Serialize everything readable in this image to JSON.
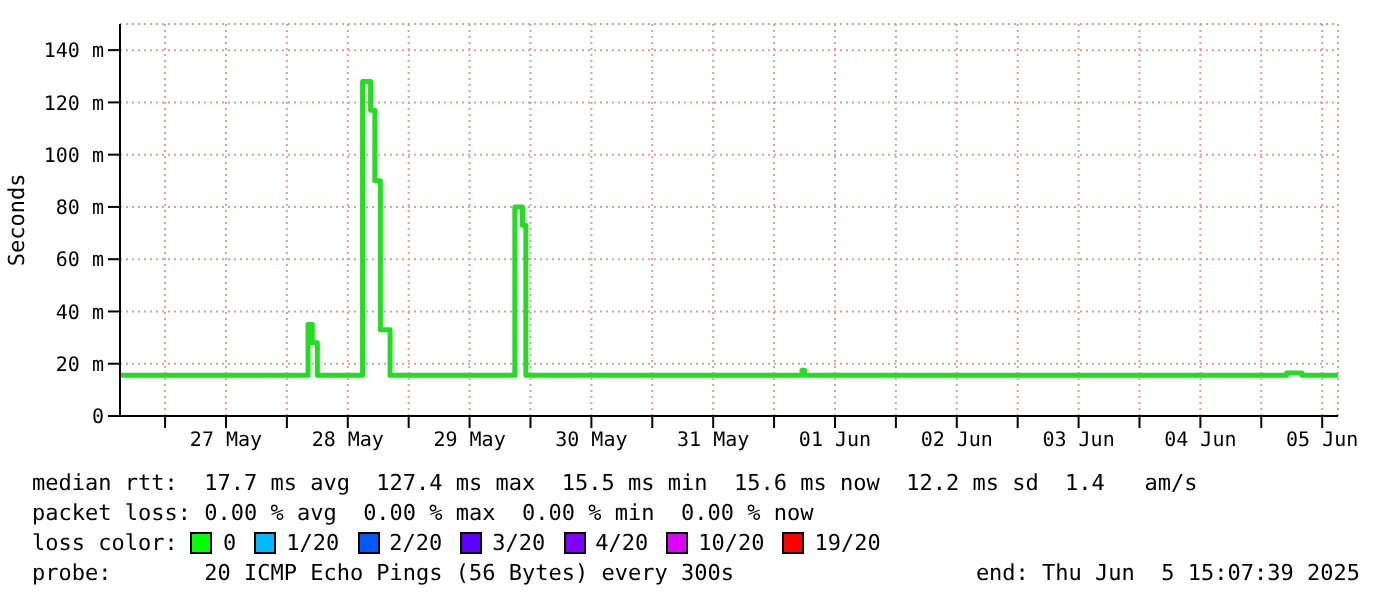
{
  "chart_data": {
    "type": "step",
    "ylabel": "Seconds",
    "x": [
      "2025-05-26T15:07",
      "2025-05-27T12:00",
      "2025-05-28T04:10",
      "2025-05-28T05:00",
      "2025-05-28T06:00",
      "2025-05-28T14:55",
      "2025-05-28T16:30",
      "2025-05-28T17:20",
      "2025-05-28T18:25",
      "2025-05-28T20:20",
      "2025-05-29T20:55",
      "2025-05-29T22:25",
      "2025-05-29T23:05",
      "2025-06-01T05:30",
      "2025-06-01T06:00",
      "2025-06-05T05:00",
      "2025-06-05T08:00",
      "2025-06-05T15:07"
    ],
    "series": [
      {
        "color": "#22dd22",
        "values": [
          15.6,
          15.6,
          35,
          28,
          15.6,
          128,
          117,
          90,
          33,
          15.6,
          80,
          73,
          15.6,
          17.5,
          15.6,
          16.5,
          15.6,
          15.6
        ]
      }
    ],
    "xlim": [
      "2025-05-26T15:07",
      "2025-06-05T15:07"
    ],
    "xticks": [
      {
        "value": "2025-05-27T00:00",
        "label": null
      },
      {
        "value": "2025-05-27T12:00",
        "label": "27 May"
      },
      {
        "value": "2025-05-28T00:00",
        "label": null
      },
      {
        "value": "2025-05-28T12:00",
        "label": "28 May"
      },
      {
        "value": "2025-05-29T00:00",
        "label": null
      },
      {
        "value": "2025-05-29T12:00",
        "label": "29 May"
      },
      {
        "value": "2025-05-30T00:00",
        "label": null
      },
      {
        "value": "2025-05-30T12:00",
        "label": "30 May"
      },
      {
        "value": "2025-05-31T00:00",
        "label": null
      },
      {
        "value": "2025-05-31T12:00",
        "label": "31 May"
      },
      {
        "value": "2025-06-01T00:00",
        "label": null
      },
      {
        "value": "2025-06-01T12:00",
        "label": "01 Jun"
      },
      {
        "value": "2025-06-02T00:00",
        "label": null
      },
      {
        "value": "2025-06-02T12:00",
        "label": "02 Jun"
      },
      {
        "value": "2025-06-03T00:00",
        "label": null
      },
      {
        "value": "2025-06-03T12:00",
        "label": "03 Jun"
      },
      {
        "value": "2025-06-04T00:00",
        "label": null
      },
      {
        "value": "2025-06-04T12:00",
        "label": "04 Jun"
      },
      {
        "value": "2025-06-05T00:00",
        "label": null
      },
      {
        "value": "2025-06-05T12:00",
        "label": "05 Jun"
      }
    ],
    "ylim": [
      0,
      150
    ],
    "yticks": [
      0,
      {
        "value": 20,
        "label": "20 m"
      },
      {
        "value": 40,
        "label": "40 m"
      },
      {
        "value": 60,
        "label": "60 m"
      },
      {
        "value": 80,
        "label": "80 m"
      },
      {
        "value": 100,
        "label": "100 m"
      },
      {
        "value": 120,
        "label": "120 m"
      },
      {
        "value": 140,
        "label": "140 m"
      }
    ],
    "grid": true,
    "legend": false,
    "marker": "none",
    "line_style": "solid",
    "annotations": [
      "median rtt:  17.7 ms avg  127.4 ms max  15.5 ms min  15.6 ms now  12.2 ms sd  1.4   am/s",
      "packet loss: 0.00 % avg  0.00 % max  0.00 % min  0.00 % now",
      "loss color:",
      "0",
      "1/20",
      "2/20",
      "3/20",
      "4/20",
      "10/20",
      "19/20",
      "probe:       20 ICMP Echo Pings (56 Bytes) every 300s",
      "end: Thu Jun  5 15:07:39 2025"
    ]
  }
}
